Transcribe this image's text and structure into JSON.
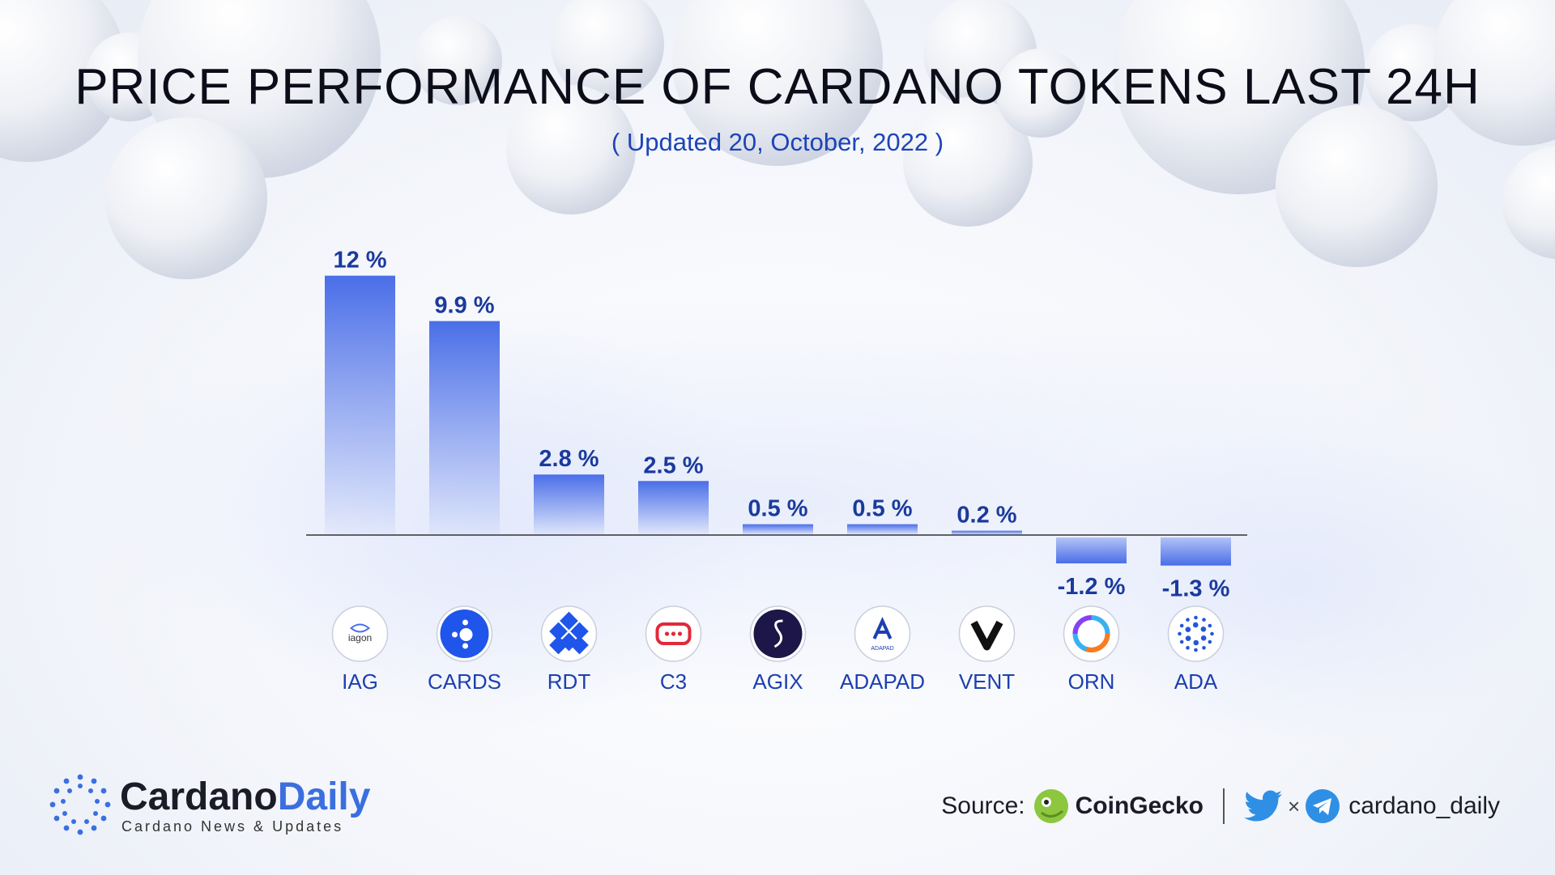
{
  "title": "PRICE PERFORMANCE OF CARDANO TOKENS LAST 24H",
  "subtitle": "( Updated 20, October, 2022 )",
  "chart_data": {
    "type": "bar",
    "categories": [
      "IAG",
      "CARDS",
      "RDT",
      "C3",
      "AGIX",
      "ADAPAD",
      "VENT",
      "ORN",
      "ADA"
    ],
    "values": [
      12,
      9.9,
      2.8,
      2.5,
      0.5,
      0.5,
      0.2,
      -1.2,
      -1.3
    ],
    "data_labels": [
      "12 %",
      "9.9 %",
      "2.8 %",
      "2.5 %",
      "0.5 %",
      "0.5 %",
      "0.2 %",
      "-1.2 %",
      "-1.3 %"
    ],
    "unit": "%",
    "grid": false,
    "legend": "none",
    "bar_color": "#4a6ee8",
    "icons": [
      {
        "name": "iagon-logo-icon",
        "text": "iagon"
      },
      {
        "name": "cards-logo-icon"
      },
      {
        "name": "rdt-logo-icon"
      },
      {
        "name": "c3-logo-icon"
      },
      {
        "name": "agix-logo-icon"
      },
      {
        "name": "adapad-logo-icon",
        "text": "ADAPAD"
      },
      {
        "name": "vent-logo-icon"
      },
      {
        "name": "orn-logo-icon"
      },
      {
        "name": "ada-logo-icon"
      }
    ]
  },
  "footer": {
    "brand_name_part1": "Cardano",
    "brand_name_part2": "Daily",
    "brand_tagline": "Cardano News & Updates",
    "source_label": "Source:",
    "source_name": "CoinGecko",
    "times_sign": "×",
    "social_handle": "cardano_daily"
  },
  "colors": {
    "accent": "#3b6fe0",
    "label_text": "#1a3a9c",
    "title_text": "#0d0d1a"
  }
}
